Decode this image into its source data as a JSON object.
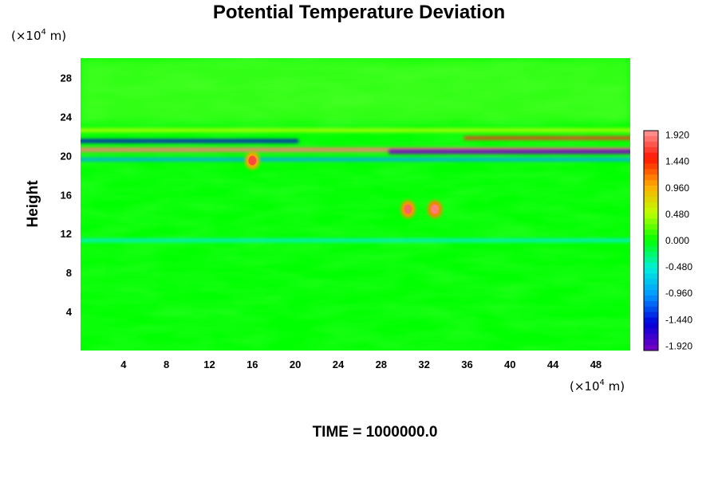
{
  "page": {
    "title": "Potential Temperature Deviation",
    "time_label": "TIME = 1000000.0"
  },
  "axes": {
    "y_unit_prefix": "(×10",
    "y_unit_exp": "4",
    "y_unit_suffix": " m)",
    "x_unit_prefix": "(×10",
    "x_unit_exp": "4",
    "x_unit_suffix": " m)",
    "ylabel": "Height"
  },
  "chart_data": {
    "type": "heatmap",
    "title": "Potential Temperature Deviation",
    "ylabel": "Height",
    "xlabel": "",
    "x_unit": "(×10⁴ m)",
    "y_unit": "(×10⁴ m)",
    "xlim": [
      0,
      51.2
    ],
    "ylim": [
      0,
      30
    ],
    "x_ticks": [
      4,
      8,
      12,
      16,
      20,
      24,
      28,
      32,
      36,
      40,
      44,
      48
    ],
    "y_ticks": [
      4,
      8,
      12,
      16,
      20,
      24,
      28
    ],
    "colorbar": {
      "min": -2.0,
      "max": 2.0,
      "labels": [
        "1.920",
        "1.440",
        "0.960",
        "0.480",
        "0.000",
        "-0.480",
        "-0.960",
        "-1.440",
        "-1.920"
      ],
      "label_values": [
        1.92,
        1.44,
        0.96,
        0.48,
        0.0,
        -0.48,
        -0.96,
        -1.44,
        -1.92
      ]
    },
    "features": [
      {
        "kind": "band",
        "y_center": 20.6,
        "x_range": [
          0,
          51.2
        ],
        "value": 1.9
      },
      {
        "kind": "band",
        "y_center": 20.4,
        "x_range": [
          29,
          51.2
        ],
        "value": -1.9
      },
      {
        "kind": "band",
        "y_center": 21.5,
        "x_range": [
          0,
          20
        ],
        "value": -1.5
      },
      {
        "kind": "band",
        "y_center": 21.8,
        "x_range": [
          36,
          51.2
        ],
        "value": 1.6
      },
      {
        "kind": "band",
        "y_center": 22.6,
        "x_range": [
          0,
          51.2
        ],
        "value": 0.5
      },
      {
        "kind": "band",
        "y_center": 19.6,
        "x_range": [
          0,
          51.2
        ],
        "value": -0.9
      },
      {
        "kind": "band",
        "y_center": 11.3,
        "x_range": [
          0,
          51.2
        ],
        "value": -0.5
      },
      {
        "kind": "blob",
        "x": 33.0,
        "y": 14.5,
        "value": 1.9
      },
      {
        "kind": "blob",
        "x": 30.5,
        "y": 14.5,
        "value": 1.8
      },
      {
        "kind": "blob",
        "x": 16.0,
        "y": 19.5,
        "value": 1.7
      }
    ]
  },
  "colors": {
    "background": "#00ff00",
    "max": "#ff9999",
    "min": "#7a00c0"
  }
}
